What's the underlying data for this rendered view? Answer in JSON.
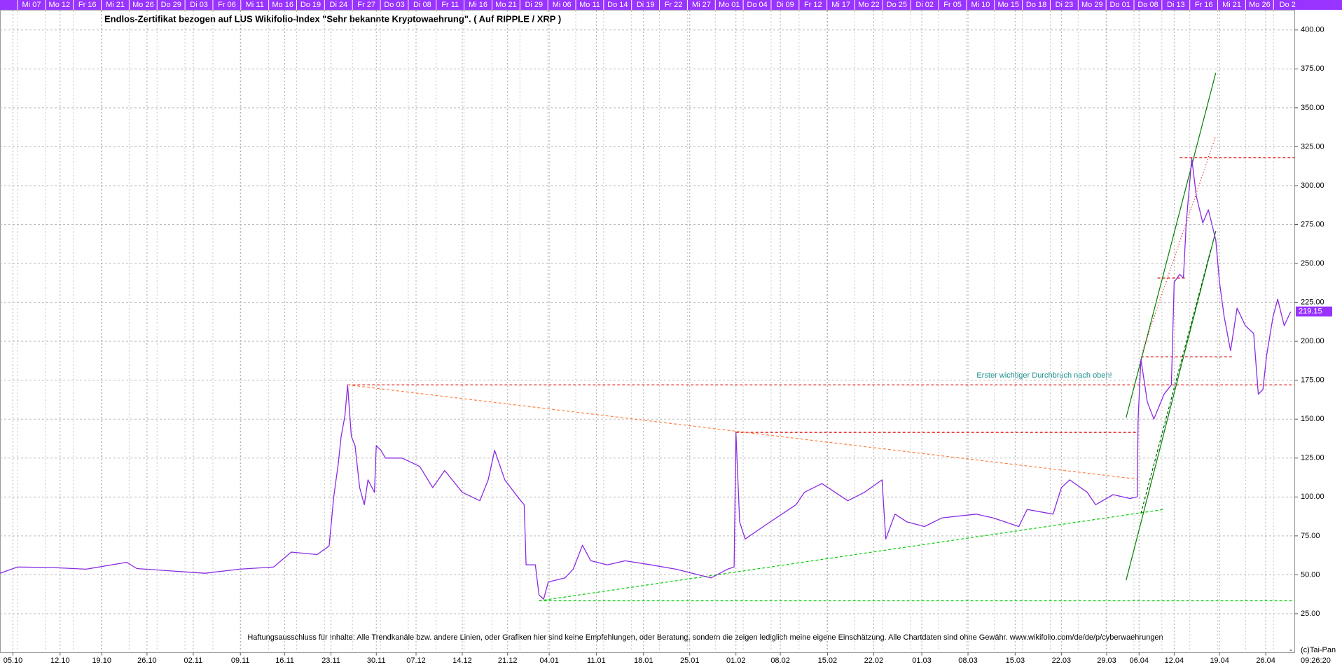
{
  "chart_data": {
    "type": "line",
    "title": "Endlos-Zertifikat bezogen auf LUS Wikifolio-Index \"Sehr bekannte Kryptowaehrung\". ( Auf RIPPLE / XRP )",
    "annotation": "Erster wichtiger Durchbruch nach oben!",
    "disclaimer": "Haftungsausschluss für Inhalte: Alle Trendkanäle bzw. andere Linien, oder Grafiken hier sind keine Empfehlungen, oder Beratung, sondern die zeigen lediglich meine eigene Einschätzung. Alle Chartdaten sind ohne Gewähr.  www.wikifolio.com/de/de/p/cyberwaehrungen",
    "copyright": "(c)Tai-Pan",
    "time": "09:26:20",
    "axis_end_marker": "-",
    "last_value": 219.15,
    "top_bar_labels": [
      "Mi 07",
      "Mo 12",
      "Fr 16",
      "Mi 21",
      "Mo 26",
      "Do 29",
      "Di 03",
      "Fr 06",
      "Mi 11",
      "Mo 16",
      "Do 19",
      "Di 24",
      "Fr 27",
      "Do 03",
      "Di 08",
      "Fr 11",
      "Mi 16",
      "Mo 21",
      "Di 29",
      "Mi 06",
      "Mo 11",
      "Do 14",
      "Di 19",
      "Fr 22",
      "Mi 27",
      "Mo 01",
      "Do 04",
      "Di 09",
      "Fr 12",
      "Mi 17",
      "Mo 22",
      "Do 25",
      "Di 02",
      "Fr 05",
      "Mi 10",
      "Mo 15",
      "Do 18",
      "Di 23",
      "Mo 29",
      "Do 01",
      "Do 08",
      "Di 13",
      "Fr 16",
      "Mi 21",
      "Mo 26",
      "Do 2"
    ],
    "xlim": [
      0,
      140
    ],
    "xticks": [
      {
        "value": 1.4,
        "label": "05.10"
      },
      {
        "value": 6.5,
        "label": "12.10"
      },
      {
        "value": 11,
        "label": "19.10"
      },
      {
        "value": 15.9,
        "label": "26.10"
      },
      {
        "value": 20.9,
        "label": "02.11"
      },
      {
        "value": 26,
        "label": "09.11"
      },
      {
        "value": 30.8,
        "label": "16.11"
      },
      {
        "value": 35.8,
        "label": "23.11"
      },
      {
        "value": 40.7,
        "label": "30.11"
      },
      {
        "value": 45,
        "label": "07.12"
      },
      {
        "value": 50,
        "label": "14.12"
      },
      {
        "value": 54.9,
        "label": "21.12"
      },
      {
        "value": 59.4,
        "label": "04.01"
      },
      {
        "value": 64.5,
        "label": "11.01"
      },
      {
        "value": 69.6,
        "label": "18.01"
      },
      {
        "value": 74.6,
        "label": "25.01"
      },
      {
        "value": 79.6,
        "label": "01.02"
      },
      {
        "value": 84.4,
        "label": "08.02"
      },
      {
        "value": 89.5,
        "label": "15.02"
      },
      {
        "value": 94.5,
        "label": "22.02"
      },
      {
        "value": 99.7,
        "label": "01.03"
      },
      {
        "value": 104.7,
        "label": "08.03"
      },
      {
        "value": 109.8,
        "label": "15.03"
      },
      {
        "value": 114.8,
        "label": "22.03"
      },
      {
        "value": 119.7,
        "label": "29.03"
      },
      {
        "value": 123.2,
        "label": "06.04"
      },
      {
        "value": 127,
        "label": "12.04"
      },
      {
        "value": 131.9,
        "label": "19.04"
      },
      {
        "value": 136.9,
        "label": "26.04"
      }
    ],
    "ylim": [
      0,
      412.5
    ],
    "yticks": [
      {
        "value": 25,
        "label": "25.00"
      },
      {
        "value": 50,
        "label": "50.00"
      },
      {
        "value": 75,
        "label": "75.00"
      },
      {
        "value": 100,
        "label": "100.00"
      },
      {
        "value": 125,
        "label": "125.00"
      },
      {
        "value": 150,
        "label": "150.00"
      },
      {
        "value": 175,
        "label": "175.00"
      },
      {
        "value": 200,
        "label": "200.00"
      },
      {
        "value": 225,
        "label": "225.00"
      },
      {
        "value": 250,
        "label": "250.00"
      },
      {
        "value": 275,
        "label": "275.00"
      },
      {
        "value": 300,
        "label": "300.00"
      },
      {
        "value": 325,
        "label": "325.00"
      },
      {
        "value": 350,
        "label": "350.00"
      },
      {
        "value": 375,
        "label": "375.00"
      },
      {
        "value": 400,
        "label": "400.00"
      }
    ],
    "grid": true,
    "series": [
      {
        "color": "#8a2be2",
        "x": [
          0,
          1.9,
          5.6,
          9.3,
          13.7,
          14.8,
          18.5,
          22.2,
          25.9,
          29.6,
          31.5,
          34.3,
          35.6,
          36.1,
          36.6,
          36.9,
          37.3,
          37.6,
          38,
          38.4,
          38.9,
          39.4,
          39.8,
          40.5,
          40.7,
          41.2,
          41.7,
          43.5,
          45.4,
          46.8,
          48.1,
          50,
          51.9,
          52.8,
          53.5,
          54.6,
          56,
          56.7,
          56.9,
          57.9,
          58.3,
          58.8,
          59.3,
          61.1,
          62,
          63,
          63.9,
          65.7,
          67.6,
          70.4,
          73.1,
          76.9,
          78.7,
          79.4,
          79.6,
          80,
          80.6,
          83.3,
          86.1,
          87,
          88.9,
          91.7,
          93.5,
          95.4,
          95.8,
          96.8,
          98.1,
          100,
          101.9,
          105.6,
          107.4,
          110.2,
          111.1,
          113.9,
          114.8,
          115.7,
          117.6,
          118.5,
          120.4,
          122.2,
          123,
          123.1,
          123.4,
          124.1,
          124.8,
          125.9,
          126.7,
          127,
          127.6,
          128,
          128.3,
          128.9,
          129.4,
          130.1,
          130.7,
          131.5,
          131.9,
          132.4,
          133.1,
          133.8,
          134.7,
          135.6,
          136.1,
          136.6,
          137,
          137.7,
          138.2,
          138.9,
          139.6
        ],
        "values": [
          51,
          55,
          54.7,
          53.6,
          58,
          54,
          52.5,
          51,
          53.6,
          55,
          64.6,
          63,
          68.5,
          100,
          122,
          139,
          152,
          172,
          139,
          133,
          106,
          95,
          111,
          103,
          133,
          130,
          125,
          125,
          119.6,
          106,
          117,
          103,
          97.6,
          111,
          130,
          111,
          100,
          95,
          56.4,
          56.4,
          37,
          34.4,
          45.4,
          48,
          53.6,
          69,
          59,
          56.4,
          59,
          56.4,
          53.6,
          48,
          53.6,
          55,
          141.6,
          84,
          73,
          84,
          95,
          103,
          108.6,
          97.6,
          103,
          111,
          73,
          89,
          84,
          81,
          86.6,
          89,
          86.6,
          81,
          92,
          89,
          106,
          111,
          103,
          95,
          101.5,
          99,
          100,
          150,
          188.5,
          161,
          150,
          166,
          172,
          238,
          243,
          240.6,
          276,
          317.5,
          293,
          276,
          284.5,
          265,
          238,
          216,
          194,
          221.3,
          210,
          205,
          166,
          169,
          191,
          216,
          227,
          210,
          219
        ]
      }
    ],
    "trend_lines": [
      {
        "color": "#e00000",
        "dash": "dashed",
        "x": [
          37.6,
          140
        ],
        "values": [
          172,
          172
        ]
      },
      {
        "color": "#e00000",
        "dash": "dashed",
        "x": [
          79.6,
          123.1
        ],
        "values": [
          141.5,
          141.5
        ]
      },
      {
        "color": "#e00000",
        "dash": "dashed",
        "x": [
          123.4,
          133.3
        ],
        "values": [
          190,
          190
        ]
      },
      {
        "color": "#e00000",
        "dash": "dashed",
        "x": [
          127.6,
          140
        ],
        "values": [
          318,
          318
        ]
      },
      {
        "color": "#e00000",
        "dash": "dashed",
        "x": [
          125.2,
          128.2
        ],
        "values": [
          240.6,
          240.6
        ]
      },
      {
        "color": "#ff8040",
        "dash": "dashed",
        "x": [
          37.6,
          123.1
        ],
        "values": [
          172,
          111.4
        ]
      },
      {
        "color": "#00cc00",
        "dash": "dashed",
        "x": [
          58.3,
          125.9
        ],
        "values": [
          33.3,
          92
        ]
      },
      {
        "color": "#00cc00",
        "dash": "dashed",
        "x": [
          58.3,
          140
        ],
        "values": [
          33.3,
          33.3
        ]
      },
      {
        "color": "#008000",
        "dash": "solid",
        "x": [
          121.8,
          131.5
        ],
        "values": [
          151,
          372.5
        ]
      },
      {
        "color": "#008000",
        "dash": "solid",
        "x": [
          121.8,
          131.5
        ],
        "values": [
          46.5,
          270.8
        ]
      },
      {
        "color": "#006000",
        "dash": "dashed",
        "x": [
          123.4,
          131
        ],
        "values": [
          89.4,
          259.8
        ]
      },
      {
        "color": "#e00000",
        "dash": "dotted",
        "x": [
          123.6,
          131.5
        ],
        "values": [
          194,
          332
        ]
      }
    ]
  }
}
